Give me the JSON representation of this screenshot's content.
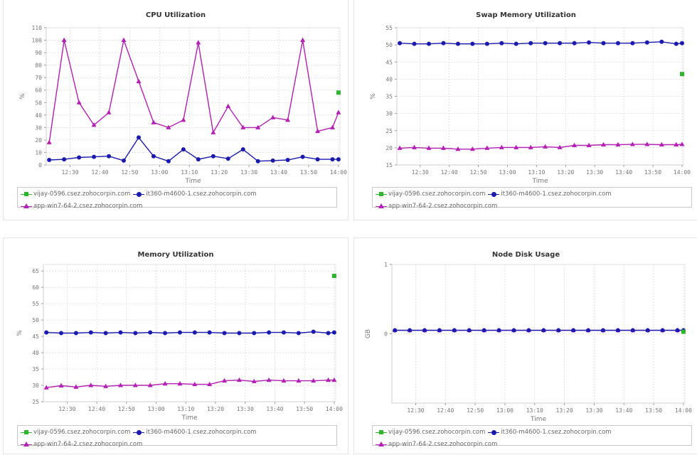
{
  "x_times": [
    "12:23",
    "12:28",
    "12:33",
    "12:38",
    "12:43",
    "12:48",
    "12:53",
    "12:58",
    "13:03",
    "13:08",
    "13:13",
    "13:18",
    "13:23",
    "13:28",
    "13:33",
    "13:38",
    "13:43",
    "13:48",
    "13:53",
    "13:58"
  ],
  "x_tick_labels": [
    "12:30",
    "12:40",
    "12:50",
    "13:00",
    "13:10",
    "13:20",
    "13:30",
    "13:40",
    "13:50",
    "14:00"
  ],
  "legend": [
    {
      "name": "vijay-0596.csez.zohocorpin.com",
      "color": "#2db52d",
      "marker": "square"
    },
    {
      "name": "it360-m4600-1.csez.zohocorpin.com",
      "color": "#1a1ab0",
      "marker": "circle"
    },
    {
      "name": "app-win7-64-2.csez.zohocorpin.com",
      "color": "#b51fb5",
      "marker": "triangle"
    }
  ],
  "chart_data": [
    {
      "type": "line",
      "title": "CPU Utilization",
      "xlabel": "Time",
      "ylabel": "%",
      "ylim": [
        0,
        110
      ],
      "yticks": [
        0,
        10,
        20,
        30,
        40,
        50,
        60,
        70,
        80,
        90,
        100,
        110
      ],
      "grid": true,
      "legend_position": "bottom",
      "series": [
        {
          "name": "vijay-0596.csez.zohocorpin.com",
          "points": [
            [
              "14:00",
              58
            ]
          ]
        },
        {
          "name": "it360-m4600-1.csez.zohocorpin.com",
          "points": [
            [
              "12:23",
              4
            ],
            [
              "12:28",
              4.5
            ],
            [
              "12:33",
              6
            ],
            [
              "12:38",
              6.5
            ],
            [
              "12:43",
              7
            ],
            [
              "12:48",
              3.5
            ],
            [
              "12:53",
              22
            ],
            [
              "12:58",
              7
            ],
            [
              "13:03",
              3
            ],
            [
              "13:08",
              12.5
            ],
            [
              "13:13",
              4.5
            ],
            [
              "13:18",
              7
            ],
            [
              "13:23",
              5
            ],
            [
              "13:28",
              12.5
            ],
            [
              "13:33",
              3
            ],
            [
              "13:38",
              3.5
            ],
            [
              "13:43",
              4
            ],
            [
              "13:48",
              6.5
            ],
            [
              "13:53",
              4.5
            ],
            [
              "13:58",
              4.5
            ],
            [
              "14:00",
              4.5
            ]
          ]
        },
        {
          "name": "app-win7-64-2.csez.zohocorpin.com",
          "points": [
            [
              "12:23",
              18
            ],
            [
              "12:28",
              100
            ],
            [
              "12:33",
              50
            ],
            [
              "12:38",
              32
            ],
            [
              "12:43",
              42
            ],
            [
              "12:48",
              100
            ],
            [
              "12:53",
              67
            ],
            [
              "12:58",
              34
            ],
            [
              "13:03",
              30
            ],
            [
              "13:08",
              36
            ],
            [
              "13:13",
              98
            ],
            [
              "13:18",
              26
            ],
            [
              "13:23",
              47
            ],
            [
              "13:28",
              30
            ],
            [
              "13:33",
              30
            ],
            [
              "13:38",
              38
            ],
            [
              "13:43",
              36
            ],
            [
              "13:48",
              100
            ],
            [
              "13:53",
              27
            ],
            [
              "13:58",
              30
            ],
            [
              "14:00",
              42
            ]
          ]
        }
      ]
    },
    {
      "type": "line",
      "title": "Swap Memory Utilization",
      "xlabel": "Time",
      "ylabel": "%",
      "ylim": [
        15,
        55
      ],
      "yticks": [
        15,
        20,
        25,
        30,
        35,
        40,
        45,
        50,
        55
      ],
      "grid": true,
      "legend_position": "bottom",
      "series": [
        {
          "name": "vijay-0596.csez.zohocorpin.com",
          "points": [
            [
              "14:00",
              41.5
            ]
          ]
        },
        {
          "name": "it360-m4600-1.csez.zohocorpin.com",
          "points": [
            [
              "12:23",
              50.5
            ],
            [
              "12:28",
              50.3
            ],
            [
              "12:33",
              50.3
            ],
            [
              "12:38",
              50.5
            ],
            [
              "12:43",
              50.3
            ],
            [
              "12:48",
              50.3
            ],
            [
              "12:53",
              50.3
            ],
            [
              "12:58",
              50.5
            ],
            [
              "13:03",
              50.3
            ],
            [
              "13:08",
              50.5
            ],
            [
              "13:13",
              50.5
            ],
            [
              "13:18",
              50.5
            ],
            [
              "13:23",
              50.5
            ],
            [
              "13:28",
              50.7
            ],
            [
              "13:33",
              50.5
            ],
            [
              "13:38",
              50.5
            ],
            [
              "13:43",
              50.5
            ],
            [
              "13:48",
              50.7
            ],
            [
              "13:53",
              50.9
            ],
            [
              "13:58",
              50.3
            ],
            [
              "14:00",
              50.5
            ]
          ]
        },
        {
          "name": "app-win7-64-2.csez.zohocorpin.com",
          "points": [
            [
              "12:23",
              19.9
            ],
            [
              "12:28",
              20.1
            ],
            [
              "12:33",
              19.9
            ],
            [
              "12:38",
              19.9
            ],
            [
              "12:43",
              19.6
            ],
            [
              "12:48",
              19.6
            ],
            [
              "12:53",
              19.9
            ],
            [
              "12:58",
              20.1
            ],
            [
              "13:03",
              20.1
            ],
            [
              "13:08",
              20.1
            ],
            [
              "13:13",
              20.3
            ],
            [
              "13:18",
              20.1
            ],
            [
              "13:23",
              20.7
            ],
            [
              "13:28",
              20.7
            ],
            [
              "13:33",
              20.9
            ],
            [
              "13:38",
              20.9
            ],
            [
              "13:43",
              21
            ],
            [
              "13:48",
              21
            ],
            [
              "13:53",
              20.9
            ],
            [
              "13:58",
              20.9
            ],
            [
              "14:00",
              21
            ]
          ]
        }
      ]
    },
    {
      "type": "line",
      "title": "Memory Utilization",
      "xlabel": "Time",
      "ylabel": "%",
      "ylim": [
        25,
        67
      ],
      "yticks": [
        25,
        30,
        35,
        40,
        45,
        50,
        55,
        60,
        65
      ],
      "grid": true,
      "legend_position": "bottom",
      "series": [
        {
          "name": "vijay-0596.csez.zohocorpin.com",
          "points": [
            [
              "14:00",
              63.5
            ]
          ]
        },
        {
          "name": "it360-m4600-1.csez.zohocorpin.com",
          "points": [
            [
              "12:23",
              46.2
            ],
            [
              "12:28",
              46
            ],
            [
              "12:33",
              46
            ],
            [
              "12:38",
              46.2
            ],
            [
              "12:43",
              46
            ],
            [
              "12:48",
              46.2
            ],
            [
              "12:53",
              46
            ],
            [
              "12:58",
              46.2
            ],
            [
              "13:03",
              46
            ],
            [
              "13:08",
              46.2
            ],
            [
              "13:13",
              46.2
            ],
            [
              "13:18",
              46.2
            ],
            [
              "13:23",
              46
            ],
            [
              "13:28",
              46
            ],
            [
              "13:33",
              46
            ],
            [
              "13:38",
              46.2
            ],
            [
              "13:43",
              46.2
            ],
            [
              "13:48",
              46
            ],
            [
              "13:53",
              46.4
            ],
            [
              "13:58",
              46
            ],
            [
              "14:00",
              46.2
            ]
          ]
        },
        {
          "name": "app-win7-64-2.csez.zohocorpin.com",
          "points": [
            [
              "12:23",
              29.3
            ],
            [
              "12:28",
              29.9
            ],
            [
              "12:33",
              29.5
            ],
            [
              "12:38",
              30
            ],
            [
              "12:43",
              29.7
            ],
            [
              "12:48",
              30
            ],
            [
              "12:53",
              30
            ],
            [
              "12:58",
              30
            ],
            [
              "13:03",
              30.5
            ],
            [
              "13:08",
              30.5
            ],
            [
              "13:13",
              30.3
            ],
            [
              "13:18",
              30.3
            ],
            [
              "13:23",
              31.4
            ],
            [
              "13:28",
              31.6
            ],
            [
              "13:33",
              31.2
            ],
            [
              "13:38",
              31.6
            ],
            [
              "13:43",
              31.4
            ],
            [
              "13:48",
              31.4
            ],
            [
              "13:53",
              31.4
            ],
            [
              "13:58",
              31.6
            ],
            [
              "14:00",
              31.6
            ]
          ]
        }
      ]
    },
    {
      "type": "line",
      "title": "Node Disk Usage",
      "xlabel": "Time",
      "ylabel": "GB",
      "ylim": [
        -1,
        1
      ],
      "yticks": [
        0,
        1
      ],
      "grid": true,
      "legend_position": "bottom",
      "series": [
        {
          "name": "vijay-0596.csez.zohocorpin.com",
          "points": [
            [
              "14:00",
              0.03
            ]
          ]
        },
        {
          "name": "it360-m4600-1.csez.zohocorpin.com",
          "points": [
            [
              "12:23",
              0.05
            ],
            [
              "12:28",
              0.05
            ],
            [
              "12:33",
              0.05
            ],
            [
              "12:38",
              0.05
            ],
            [
              "12:43",
              0.05
            ],
            [
              "12:48",
              0.05
            ],
            [
              "12:53",
              0.05
            ],
            [
              "12:58",
              0.05
            ],
            [
              "13:03",
              0.05
            ],
            [
              "13:08",
              0.05
            ],
            [
              "13:13",
              0.05
            ],
            [
              "13:18",
              0.05
            ],
            [
              "13:23",
              0.05
            ],
            [
              "13:28",
              0.05
            ],
            [
              "13:33",
              0.05
            ],
            [
              "13:38",
              0.05
            ],
            [
              "13:43",
              0.05
            ],
            [
              "13:48",
              0.05
            ],
            [
              "13:53",
              0.05
            ],
            [
              "13:58",
              0.05
            ],
            [
              "14:00",
              0.05
            ]
          ]
        },
        {
          "name": "app-win7-64-2.csez.zohocorpin.com",
          "points": [
            [
              "12:23",
              0.05
            ],
            [
              "12:28",
              0.05
            ],
            [
              "12:33",
              0.05
            ],
            [
              "12:38",
              0.05
            ],
            [
              "12:43",
              0.05
            ],
            [
              "12:48",
              0.05
            ],
            [
              "12:53",
              0.05
            ],
            [
              "12:58",
              0.05
            ],
            [
              "13:03",
              0.05
            ],
            [
              "13:08",
              0.05
            ],
            [
              "13:13",
              0.05
            ],
            [
              "13:18",
              0.05
            ],
            [
              "13:23",
              0.05
            ],
            [
              "13:28",
              0.05
            ],
            [
              "13:33",
              0.05
            ],
            [
              "13:38",
              0.05
            ],
            [
              "13:43",
              0.05
            ],
            [
              "13:48",
              0.05
            ],
            [
              "13:53",
              0.05
            ],
            [
              "13:58",
              0.05
            ],
            [
              "14:00",
              0.05
            ]
          ]
        }
      ]
    }
  ]
}
